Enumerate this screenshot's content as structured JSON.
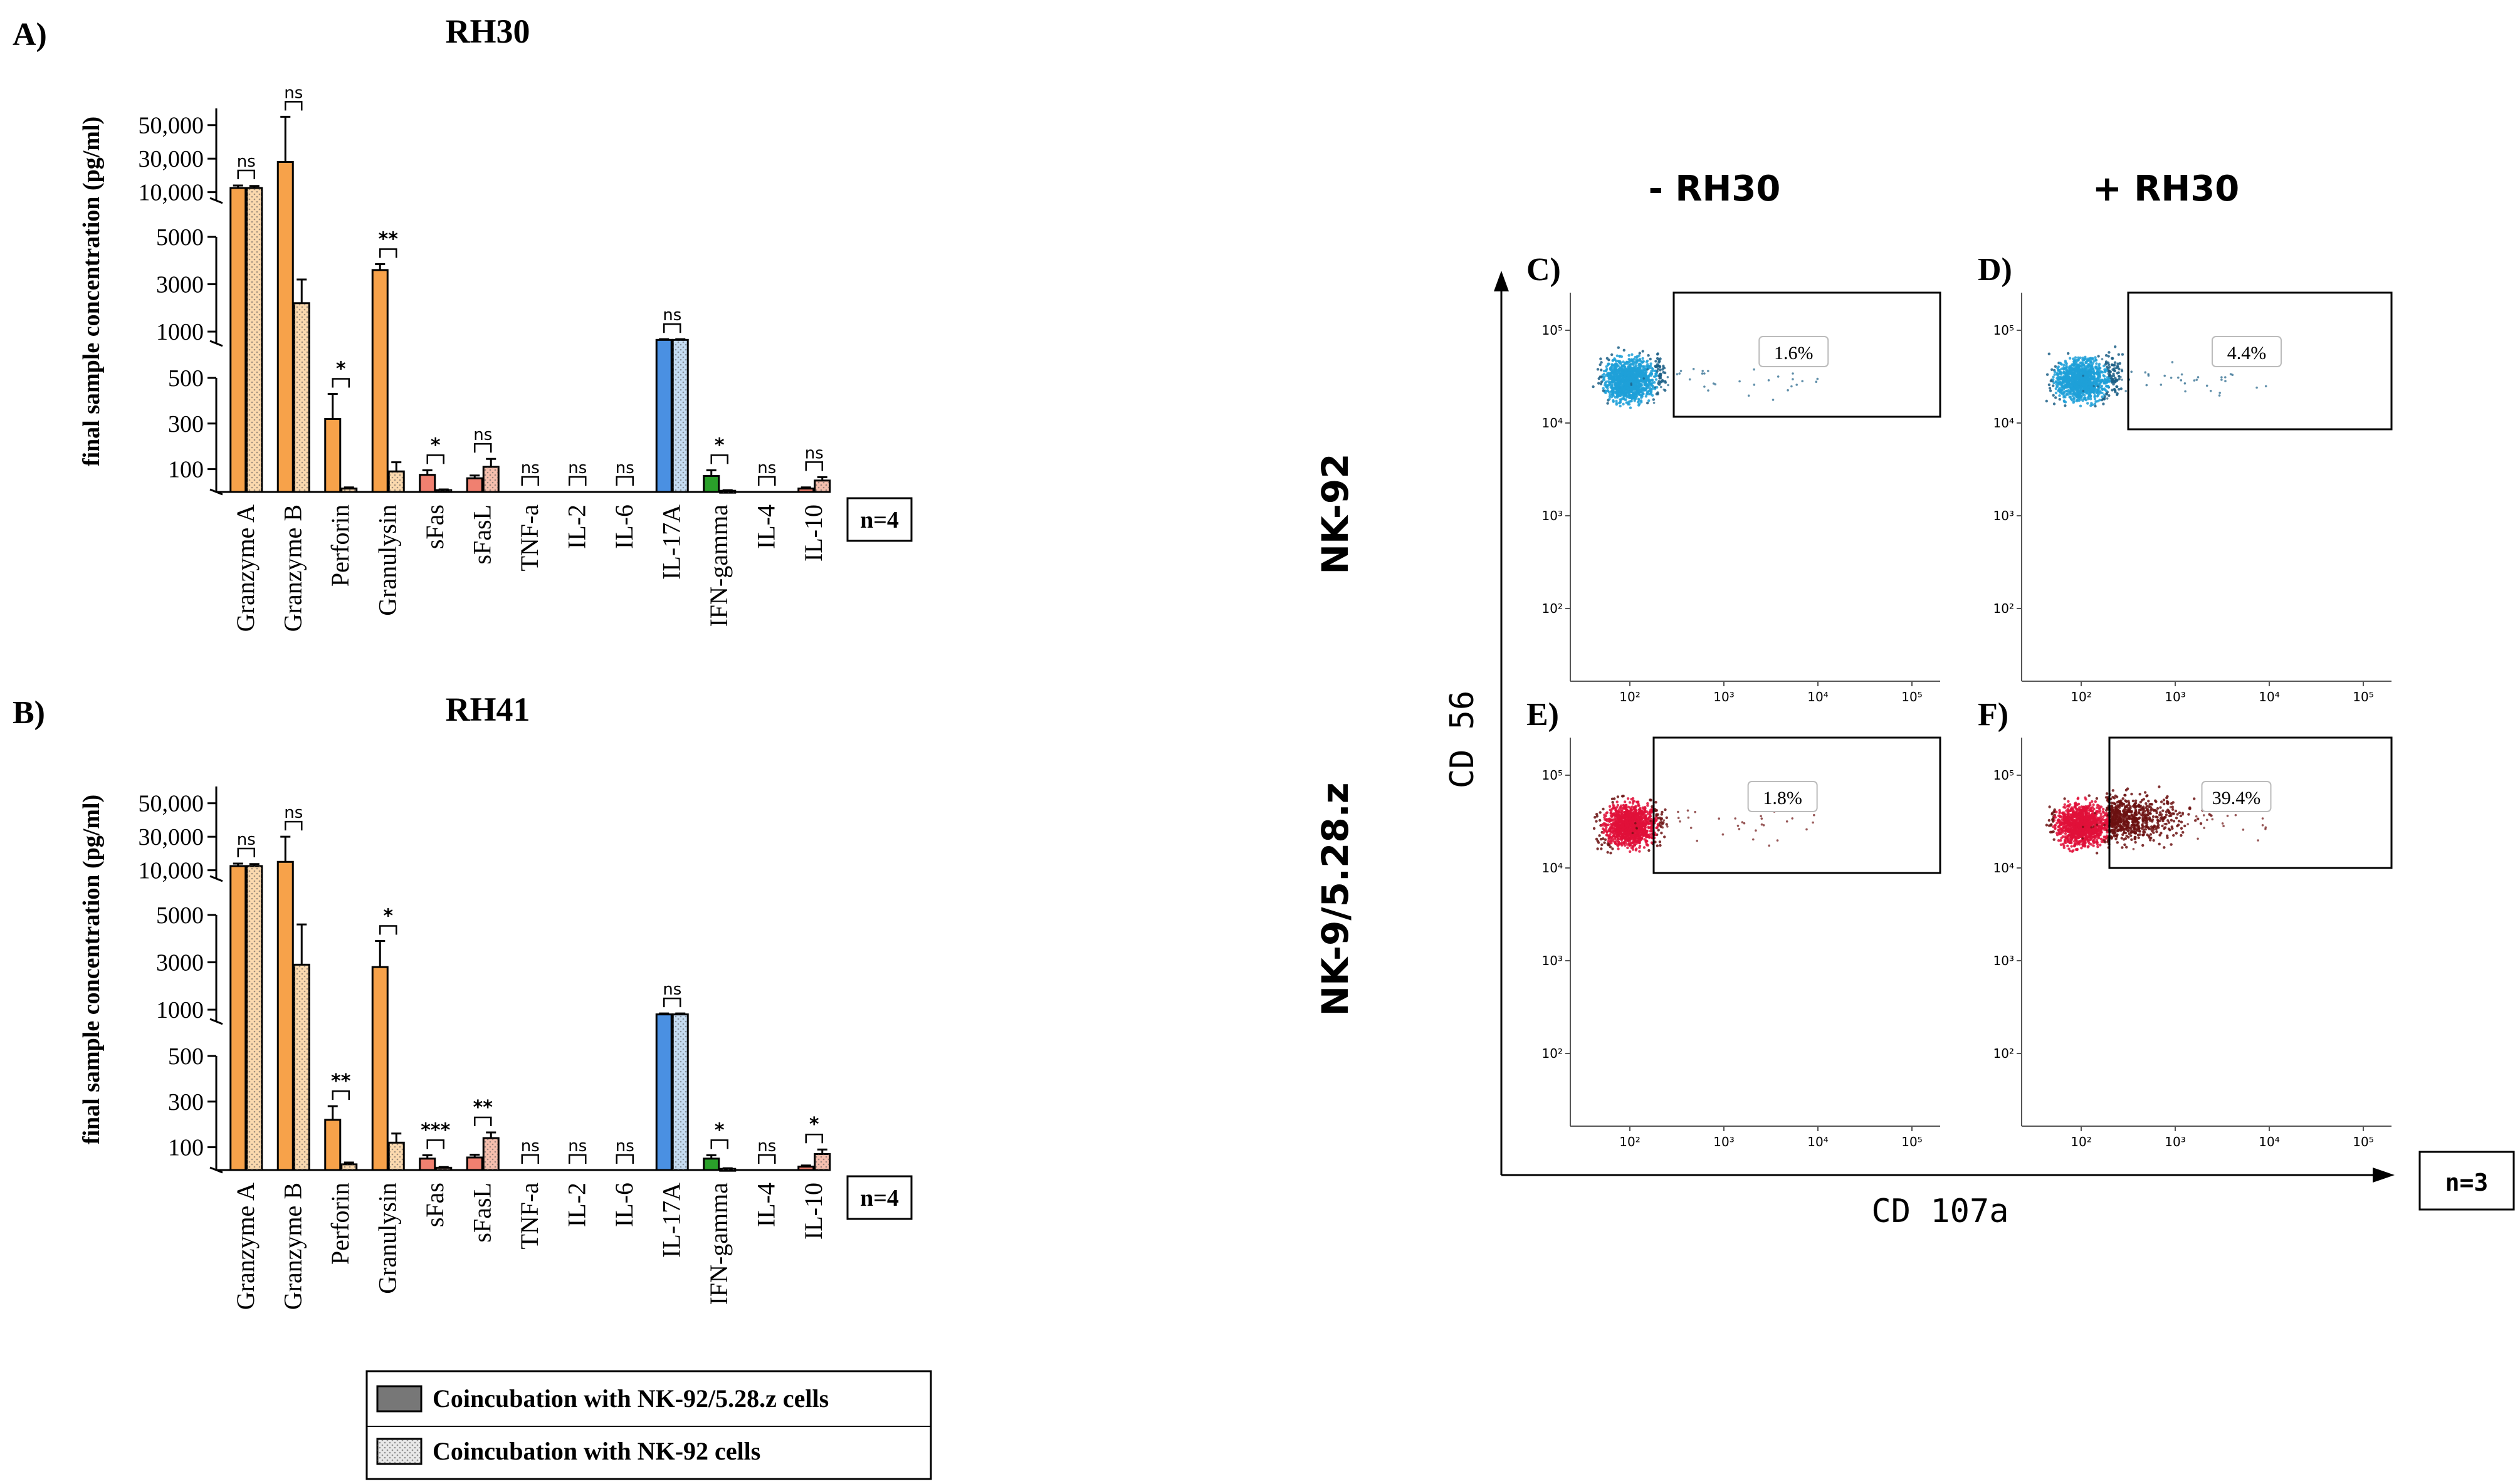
{
  "panel_labels": {
    "a": "A)",
    "b": "B)",
    "c": "C)",
    "d": "D)",
    "e": "E)",
    "f": "F)"
  },
  "colors": {
    "orange": "#f7a24a",
    "orange_light": "#fbd9ae",
    "salmon": "#f08070",
    "salmon_light": "#f6bfae",
    "blue": "#4a90e2",
    "blue_light": "#c5dcf2",
    "green": "#2aa02a",
    "green_light": "#a5dca0",
    "bar_stroke": "#000000",
    "dot_blue_core": "#1fa0d8",
    "dot_blue_edge": "#1c5f86",
    "dot_red_core": "#e0103a",
    "dot_red_edge": "#6b1010"
  },
  "chart_data": [
    {
      "type": "bar",
      "id": "A",
      "title": "RH30",
      "ylabel": "final sample concentration (pg/ml)",
      "n_label": "n=4",
      "axis_breaks": [
        {
          "range": [
            0,
            500
          ],
          "ticks": [
            100,
            300,
            500
          ],
          "tick_labels": [
            "100",
            "300",
            "500"
          ]
        },
        {
          "range": [
            500,
            5000
          ],
          "ticks": [
            1000,
            3000,
            5000
          ],
          "tick_labels": [
            "1000",
            "3000",
            "5000"
          ]
        },
        {
          "range": [
            5000,
            60000
          ],
          "ticks": [
            10000,
            30000,
            50000
          ],
          "tick_labels": [
            "10,000",
            "30,000",
            "50,000"
          ]
        }
      ],
      "categories": [
        "Granzyme A",
        "Granzyme B",
        "Perforin",
        "Granulysin",
        "sFas",
        "sFasL",
        "TNF-a",
        "IL-2",
        "IL-6",
        "IL-17A",
        "IFN-gamma",
        "IL-4",
        "IL-10"
      ],
      "category_colors": [
        "orange",
        "orange",
        "orange",
        "orange",
        "salmon",
        "salmon",
        "salmon",
        "salmon",
        "salmon",
        "blue",
        "green",
        "green",
        "salmon"
      ],
      "series": [
        {
          "name": "Coincubation with NK-92/5.28.z cells",
          "values": [
            12500,
            28000,
            320,
            3600,
            75,
            60,
            0,
            0,
            0,
            650,
            70,
            0,
            15
          ],
          "errors": [
            1500,
            27000,
            110,
            250,
            20,
            12,
            0,
            0,
            0,
            30,
            25,
            0,
            5
          ]
        },
        {
          "name": "Coincubation with NK-92 cells",
          "values": [
            12500,
            2200,
            15,
            90,
            8,
            110,
            0,
            0,
            0,
            650,
            5,
            0,
            50
          ],
          "errors": [
            1200,
            1000,
            5,
            40,
            3,
            35,
            0,
            0,
            0,
            30,
            3,
            0,
            15
          ]
        }
      ],
      "significance": [
        "ns",
        "ns",
        "*",
        "**",
        "*",
        "ns",
        "ns",
        "ns",
        "ns",
        "ns",
        "*",
        "ns",
        "ns"
      ]
    },
    {
      "type": "bar",
      "id": "B",
      "title": "RH41",
      "ylabel": "final sample concentration (pg/ml)",
      "n_label": "n=4",
      "axis_breaks": [
        {
          "range": [
            0,
            500
          ],
          "ticks": [
            100,
            300,
            500
          ],
          "tick_labels": [
            "100",
            "300",
            "500"
          ]
        },
        {
          "range": [
            500,
            5000
          ],
          "ticks": [
            1000,
            3000,
            5000
          ],
          "tick_labels": [
            "1000",
            "3000",
            "5000"
          ]
        },
        {
          "range": [
            5000,
            60000
          ],
          "ticks": [
            10000,
            30000,
            50000
          ],
          "tick_labels": [
            "10,000",
            "30,000",
            "50,000"
          ]
        }
      ],
      "categories": [
        "Granzyme A",
        "Granzyme B",
        "Perforin",
        "Granulysin",
        "sFas",
        "sFasL",
        "TNF-a",
        "IL-2",
        "IL-6",
        "IL-17A",
        "IFN-gamma",
        "IL-4",
        "IL-10"
      ],
      "category_colors": [
        "orange",
        "orange",
        "orange",
        "orange",
        "salmon",
        "salmon",
        "salmon",
        "salmon",
        "salmon",
        "blue",
        "green",
        "green",
        "salmon"
      ],
      "series": [
        {
          "name": "Coincubation with NK-92/5.28.z cells",
          "values": [
            12500,
            15000,
            220,
            2800,
            50,
            55,
            0,
            0,
            0,
            800,
            50,
            0,
            15
          ],
          "errors": [
            1500,
            15000,
            60,
            1100,
            15,
            12,
            0,
            0,
            0,
            40,
            15,
            0,
            5
          ]
        },
        {
          "name": "Coincubation with NK-92 cells",
          "values": [
            12500,
            2900,
            25,
            120,
            10,
            140,
            0,
            0,
            0,
            800,
            5,
            0,
            70
          ],
          "errors": [
            1200,
            1700,
            8,
            40,
            3,
            25,
            0,
            0,
            0,
            40,
            3,
            0,
            20
          ]
        }
      ],
      "significance": [
        "ns",
        "ns",
        "**",
        "*",
        "***",
        "**",
        "ns",
        "ns",
        "ns",
        "ns",
        "*",
        "ns",
        "*"
      ]
    },
    {
      "type": "scatter",
      "id": "flow",
      "column_labels": [
        "- RH30",
        "+ RH30"
      ],
      "row_labels": [
        "NK-92",
        "NK-9/5.28.z"
      ],
      "xlabel": "CD 107a",
      "ylabel": "CD 56",
      "n_label": "n=3",
      "axis_ticks": {
        "x": [
          "10²",
          "10³",
          "10⁴",
          "10⁵"
        ],
        "y": [
          "10⁵",
          "10⁴",
          "10³",
          "10²"
        ]
      },
      "plots": [
        {
          "label": "C)",
          "gate_percent": "1.6%",
          "cell_line": "NK-92",
          "condition": "- RH30"
        },
        {
          "label": "D)",
          "gate_percent": "4.4%",
          "cell_line": "NK-92",
          "condition": "+ RH30"
        },
        {
          "label": "E)",
          "gate_percent": "1.8%",
          "cell_line": "NK-9/5.28.z",
          "condition": "- RH30"
        },
        {
          "label": "F)",
          "gate_percent": "39.4%",
          "cell_line": "NK-9/5.28.z",
          "condition": "+ RH30"
        }
      ]
    }
  ],
  "legend": {
    "items": [
      {
        "label": "Coincubation with NK-92/5.28.z cells",
        "swatch": "solid-gray"
      },
      {
        "label": "Coincubation with NK-92 cells",
        "swatch": "dotted-light"
      }
    ]
  }
}
